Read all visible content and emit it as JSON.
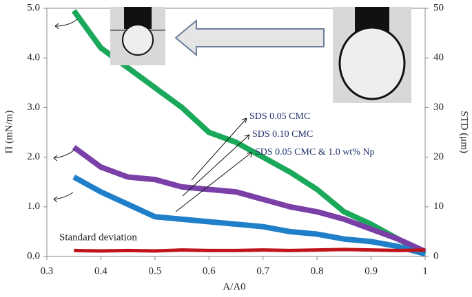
{
  "chart_data": {
    "type": "line",
    "x_label": "A/A0",
    "y_label": "Π (mN/m)",
    "y2_label": "STD (μm)",
    "x": [
      0.35,
      0.4,
      0.45,
      0.5,
      0.55,
      0.6,
      0.65,
      0.7,
      0.75,
      0.8,
      0.85,
      0.9,
      0.95,
      1.0
    ],
    "series": [
      {
        "name": "SDS 0.05 CMC",
        "color": "#1aa85a",
        "values": [
          4.95,
          4.2,
          3.8,
          3.4,
          3.0,
          2.5,
          2.3,
          2.0,
          1.7,
          1.35,
          0.9,
          0.65,
          0.35,
          0.05
        ]
      },
      {
        "name": "SDS 0.10 CMC",
        "color": "#7b3fa8",
        "values": [
          2.2,
          1.8,
          1.6,
          1.55,
          1.4,
          1.35,
          1.3,
          1.15,
          1.0,
          0.9,
          0.75,
          0.55,
          0.35,
          0.1
        ]
      },
      {
        "name": "SDS 0.05 CMC & 1.0 wt% Np",
        "color": "#1f7fc8",
        "values": [
          1.6,
          1.3,
          1.05,
          0.8,
          0.75,
          0.7,
          0.65,
          0.6,
          0.5,
          0.45,
          0.35,
          0.3,
          0.2,
          0.05
        ]
      },
      {
        "name": "Standard deviation",
        "color": "#c0141a",
        "axis": "y2",
        "values": [
          1.2,
          1.1,
          1.2,
          1.1,
          1.3,
          1.2,
          1.2,
          1.3,
          1.2,
          1.3,
          1.4,
          1.3,
          1.2,
          1.3
        ]
      }
    ],
    "xlim": [
      0.3,
      1
    ],
    "xticks": [
      0.3,
      0.4,
      0.5,
      0.6,
      0.7,
      0.8,
      0.9,
      1
    ],
    "ylim": [
      0,
      5
    ],
    "yticks": [
      {
        "value": 0,
        "label": "0.0"
      },
      {
        "value": 1,
        "label": "1.0"
      },
      {
        "value": 2,
        "label": "2.0"
      },
      {
        "value": 3,
        "label": "3.0"
      },
      {
        "value": 4,
        "label": "4.0"
      },
      {
        "value": 5,
        "label": "5.0"
      }
    ],
    "y2lim": [
      0,
      50
    ],
    "y2ticks": [
      0,
      10,
      20,
      30,
      40,
      50
    ]
  }
}
